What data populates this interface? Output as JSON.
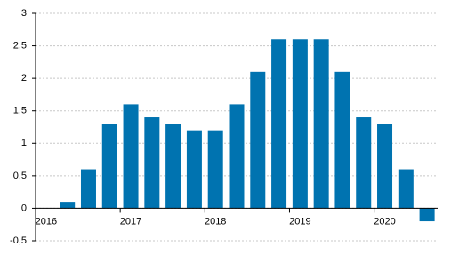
{
  "chart_data": {
    "type": "bar",
    "categories": [
      "2016",
      null,
      null,
      null,
      "2017",
      null,
      null,
      null,
      "2018",
      null,
      null,
      null,
      "2019",
      null,
      null,
      null,
      "2020",
      null,
      null
    ],
    "values": [
      0,
      0.1,
      0.6,
      1.3,
      1.6,
      1.4,
      1.3,
      1.2,
      1.2,
      1.6,
      2.1,
      2.6,
      2.6,
      2.6,
      2.1,
      1.4,
      1.3,
      0.6,
      -0.2
    ],
    "color": "#0073b0",
    "ylim": [
      -0.5,
      3
    ],
    "yticks": [
      {
        "value": -0.5,
        "label": "-0,5"
      },
      0,
      {
        "value": 0.5,
        "label": "0,5"
      },
      1,
      {
        "value": 1.5,
        "label": "1,5"
      },
      2,
      {
        "value": 2.5,
        "label": "2,5"
      },
      3
    ],
    "grid": true
  }
}
